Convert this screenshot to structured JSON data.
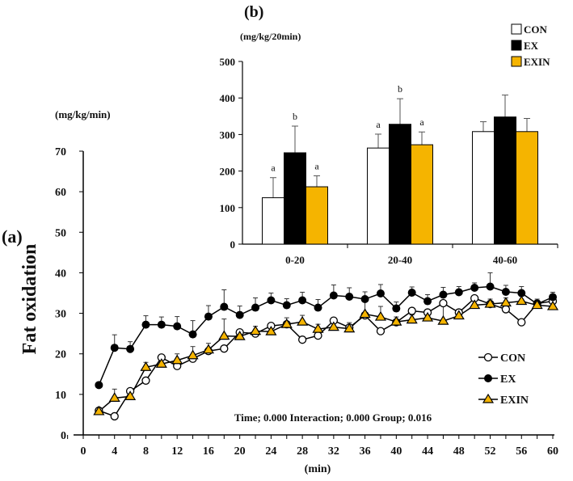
{
  "chart_data": [
    {
      "type": "line",
      "panel_label": "(a)",
      "unit_label": "(mg/kg/min)",
      "ylabel": "Fat oxidation",
      "xlabel": "(min)",
      "xlim": [
        0,
        60
      ],
      "ylim": [
        0,
        70
      ],
      "xticks": [
        0,
        4,
        8,
        12,
        16,
        20,
        24,
        28,
        32,
        36,
        40,
        44,
        48,
        52,
        56,
        60
      ],
      "yticks": [
        0,
        10,
        20,
        30,
        40,
        50,
        60,
        70
      ],
      "x": [
        2,
        4,
        6,
        8,
        10,
        12,
        14,
        16,
        18,
        20,
        22,
        24,
        26,
        28,
        30,
        32,
        34,
        36,
        38,
        40,
        42,
        44,
        46,
        48,
        50,
        52,
        54,
        56,
        58,
        60
      ],
      "series": [
        {
          "name": "CON",
          "marker": "open-circle",
          "values": [
            6.0,
            4.6,
            10.8,
            13.4,
            19.1,
            17.0,
            18.8,
            20.7,
            21.3,
            25.3,
            25.0,
            26.9,
            27.3,
            23.5,
            24.5,
            28.2,
            26.5,
            29.5,
            25.6,
            27.8,
            30.6,
            30.2,
            32.5,
            30.2,
            33.7,
            32.3,
            31.0,
            27.8,
            32.4,
            33.0
          ]
        },
        {
          "name": "EX",
          "marker": "filled-circle",
          "values": [
            12.3,
            21.5,
            21.2,
            27.2,
            27.2,
            26.8,
            24.8,
            29.2,
            31.6,
            29.6,
            31.4,
            33.2,
            32.0,
            33.2,
            31.4,
            34.4,
            34.1,
            33.5,
            34.9,
            31.2,
            35.1,
            33.0,
            34.6,
            35.2,
            36.3,
            36.6,
            35.3,
            35.0,
            32.3,
            34.0
          ],
          "errors": [
            0,
            3.2,
            1.8,
            2.2,
            1.9,
            2.4,
            3.4,
            2.7,
            4.2,
            2.2,
            2.4,
            1.8,
            1.6,
            2.0,
            2.0,
            2.6,
            2.2,
            1.8,
            2.2,
            1.6,
            1.4,
            1.6,
            1.8,
            1.4,
            1.2,
            3.4,
            1.6,
            1.6,
            1.2,
            1.2
          ]
        },
        {
          "name": "EXIN",
          "marker": "yellow-triangle",
          "values": [
            5.8,
            9.1,
            9.5,
            16.7,
            17.5,
            18.4,
            19.6,
            21.0,
            24.4,
            24.3,
            25.6,
            25.5,
            27.3,
            27.9,
            26.1,
            26.6,
            26.2,
            29.8,
            29.1,
            27.9,
            28.4,
            28.9,
            28.1,
            29.4,
            32.0,
            32.3,
            32.6,
            33.0,
            32.0,
            31.7
          ],
          "errors": [
            0,
            2.2,
            1.2,
            1.2,
            1.5,
            1.6,
            2.2,
            1.6,
            4.2,
            1.5,
            1.2,
            1.2,
            1.6,
            1.6,
            1.2,
            1.2,
            1.5,
            3.6,
            2.6,
            1.2,
            1.2,
            1.2,
            5.0,
            1.6,
            1.2,
            1.2,
            1.2,
            1.2,
            1.2,
            1.2
          ]
        }
      ],
      "legend": [
        "CON",
        "EX",
        "EXIN"
      ],
      "legend_position": "right",
      "annotation": "Time; 0.000  Interaction; 0.000  Group; 0.016"
    },
    {
      "type": "bar",
      "panel_label": "(b)",
      "unit_label": "(mg/kg/20min)",
      "categories": [
        "0-20",
        "20-40",
        "40-60"
      ],
      "ylim": [
        0,
        500
      ],
      "yticks": [
        0,
        100,
        200,
        300,
        400,
        500
      ],
      "series": [
        {
          "name": "CON",
          "color": "#ffffff",
          "values": [
            127,
            263,
            308
          ],
          "errors": [
            55,
            38,
            27
          ],
          "letters": [
            "a",
            "a",
            ""
          ]
        },
        {
          "name": "EX",
          "color": "#000000",
          "values": [
            250,
            328,
            348
          ],
          "errors": [
            73,
            70,
            60
          ],
          "letters": [
            "b",
            "b",
            ""
          ]
        },
        {
          "name": "EXIN",
          "color": "#f5b400",
          "values": [
            157,
            272,
            308
          ],
          "errors": [
            30,
            35,
            36
          ],
          "letters": [
            "a",
            "a",
            ""
          ]
        }
      ],
      "legend": [
        "CON",
        "EX",
        "EXIN"
      ],
      "legend_position": "top-right"
    }
  ]
}
